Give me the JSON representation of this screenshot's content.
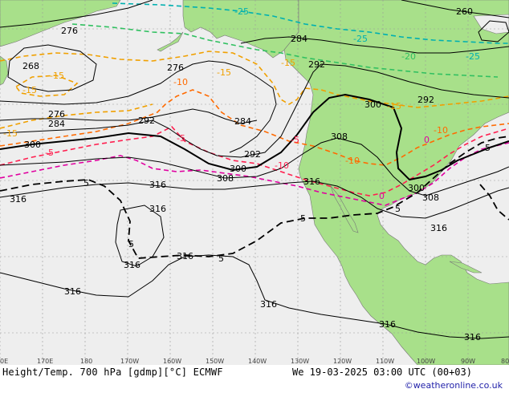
{
  "map": {
    "title": "Height/Temp. 700 hPa [gdmp][°C] ECMWF",
    "valid_time": "We 19-03-2025 03:00 UTC (00+03)",
    "credit": "©weatheronline.co.uk",
    "colors": {
      "ocean": "#eeeeee",
      "land": "#a8e08a",
      "grid": "#9a9a9a",
      "height_contour": "#000000",
      "temp_minus25": "#00b0b0",
      "temp_minus20": "#30c060",
      "temp_minus15": "#f0a000",
      "temp_minus10": "#ff6a00",
      "temp_minus5": "#ff2050",
      "temp_0": "#e000a0",
      "temp_plus5": "#000000"
    },
    "lon_labels": [
      "0E",
      "170E",
      "180",
      "170W",
      "160W",
      "150W",
      "140W",
      "130W",
      "120W",
      "110W",
      "100W",
      "90W",
      "80"
    ],
    "height_labels": {
      "h260": "260",
      "h268": "268",
      "h276a": "276",
      "h276b": "276",
      "h276c": "276",
      "h284a": "284",
      "h284b": "284",
      "h284c": "284",
      "h292a": "292",
      "h292b": "292",
      "h292c": "292",
      "h292d": "292",
      "h300a": "300",
      "h300b": "300",
      "h300c": "300",
      "h300d": "300",
      "h308a": "308",
      "h308b": "308",
      "h308c": "308",
      "h316a": "316",
      "h316b": "316",
      "h316c": "316",
      "h316d": "316",
      "h316e": "316",
      "h316f": "316",
      "h316g": "316",
      "h316h": "316",
      "h316i": "316",
      "h316j": "316",
      "h316k": "316"
    },
    "temp_labels": {
      "tm25a": "-25",
      "tm25b": "-25",
      "tm25c": "-25",
      "tm20a": "-20",
      "tm15a": "-15",
      "tm15b": "-15",
      "tm15c": "-15",
      "tm15d": "-15",
      "tm15e": "-15",
      "tm15f": "-15",
      "tm10a": "-10",
      "tm10b": "-10",
      "tm10c": "-10",
      "tm10d": "-10",
      "tm5a": "-5",
      "tm5b": "-5",
      "tm5c": "-5",
      "t0a": "0",
      "t0b": "0",
      "t5a": "5",
      "t5b": "5",
      "t5c": "5",
      "t5d": "5",
      "t5e": "5",
      "t5f": "5"
    }
  }
}
